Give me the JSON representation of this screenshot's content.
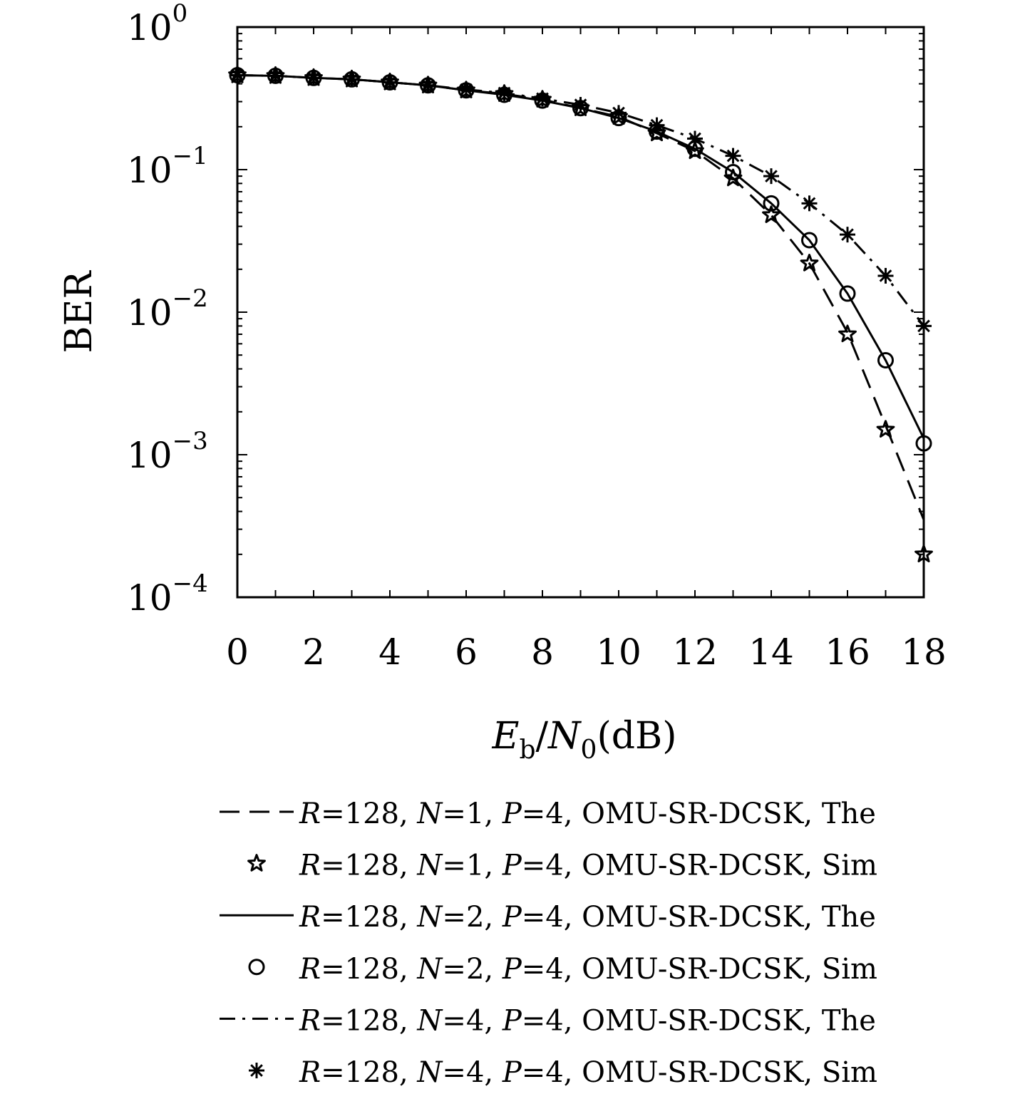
{
  "chart_data": {
    "type": "line",
    "xlabel": "E_b/N_0(dB)",
    "xlabel_parts": {
      "main": "E",
      "sub": "b",
      "slash": "/",
      "main2": "N",
      "sub2": "0",
      "unit": "(dB)"
    },
    "ylabel": "BER",
    "xlim": [
      0,
      18
    ],
    "ylim": [
      0.0001,
      1
    ],
    "yscale": "log",
    "grid": false,
    "legend_position": "below",
    "x_ticks": [
      "0",
      "2",
      "4",
      "6",
      "8",
      "10",
      "12",
      "14",
      "16",
      "18"
    ],
    "y_ticks": [
      {
        "base": "10",
        "exp": "0"
      },
      {
        "base": "10",
        "exp": "−1"
      },
      {
        "base": "10",
        "exp": "−2"
      },
      {
        "base": "10",
        "exp": "−3"
      },
      {
        "base": "10",
        "exp": "−4"
      }
    ],
    "series": [
      {
        "name": "R=128, N=1, P=4, OMU-SR-DCSK, The",
        "kind": "theory",
        "style": "dashed",
        "x": [
          0,
          1,
          2,
          3,
          4,
          5,
          6,
          7,
          8,
          9,
          10,
          11,
          12,
          13,
          14,
          15,
          16,
          17,
          18
        ],
        "y": [
          0.46,
          0.455,
          0.44,
          0.43,
          0.41,
          0.39,
          0.36,
          0.34,
          0.31,
          0.27,
          0.235,
          0.18,
          0.135,
          0.087,
          0.048,
          0.022,
          0.0072,
          0.0016,
          0.00035
        ]
      },
      {
        "name": "R=128, N=1, P=4, OMU-SR-DCSK, Sim",
        "kind": "sim",
        "marker": "star",
        "x": [
          0,
          1,
          2,
          3,
          4,
          5,
          6,
          7,
          8,
          9,
          10,
          11,
          12,
          13,
          14,
          15,
          16,
          17,
          18
        ],
        "y": [
          0.46,
          0.455,
          0.44,
          0.43,
          0.41,
          0.39,
          0.36,
          0.34,
          0.31,
          0.27,
          0.235,
          0.18,
          0.135,
          0.087,
          0.048,
          0.022,
          0.007,
          0.0015,
          0.0002
        ]
      },
      {
        "name": "R=128, N=2, P=4, OMU-SR-DCSK, The",
        "kind": "theory",
        "style": "solid",
        "x": [
          0,
          1,
          2,
          3,
          4,
          5,
          6,
          7,
          8,
          9,
          10,
          11,
          12,
          13,
          14,
          15,
          16,
          17,
          18
        ],
        "y": [
          0.46,
          0.455,
          0.44,
          0.43,
          0.41,
          0.39,
          0.36,
          0.335,
          0.305,
          0.27,
          0.23,
          0.185,
          0.14,
          0.096,
          0.058,
          0.032,
          0.0135,
          0.0046,
          0.0013
        ]
      },
      {
        "name": "R=128, N=2, P=4, OMU-SR-DCSK, Sim",
        "kind": "sim",
        "marker": "circle",
        "x": [
          0,
          1,
          2,
          3,
          4,
          5,
          6,
          7,
          8,
          9,
          10,
          11,
          12,
          13,
          14,
          15,
          16,
          17,
          18
        ],
        "y": [
          0.46,
          0.455,
          0.44,
          0.43,
          0.41,
          0.39,
          0.36,
          0.335,
          0.305,
          0.27,
          0.23,
          0.185,
          0.14,
          0.096,
          0.058,
          0.032,
          0.0135,
          0.0046,
          0.0012
        ]
      },
      {
        "name": "R=128, N=4, P=4, OMU-SR-DCSK, The",
        "kind": "theory",
        "style": "dashdot",
        "x": [
          0,
          1,
          2,
          3,
          4,
          5,
          6,
          7,
          8,
          9,
          10,
          11,
          12,
          13,
          14,
          15,
          16,
          17,
          18
        ],
        "y": [
          0.46,
          0.455,
          0.44,
          0.43,
          0.41,
          0.39,
          0.365,
          0.345,
          0.315,
          0.285,
          0.25,
          0.205,
          0.165,
          0.125,
          0.09,
          0.058,
          0.035,
          0.018,
          0.008
        ]
      },
      {
        "name": "R=128, N=4, P=4, OMU-SR-DCSK, Sim",
        "kind": "sim",
        "marker": "asterisk",
        "x": [
          0,
          1,
          2,
          3,
          4,
          5,
          6,
          7,
          8,
          9,
          10,
          11,
          12,
          13,
          14,
          15,
          16,
          17,
          18
        ],
        "y": [
          0.46,
          0.455,
          0.44,
          0.43,
          0.41,
          0.39,
          0.365,
          0.345,
          0.315,
          0.285,
          0.25,
          0.205,
          0.165,
          0.125,
          0.09,
          0.058,
          0.035,
          0.018,
          0.008
        ]
      }
    ],
    "legend": [
      {
        "parts": [
          [
            "R",
            "it"
          ],
          [
            "=128, ",
            ""
          ],
          [
            "N",
            "it"
          ],
          [
            "=1, ",
            ""
          ],
          [
            "P",
            "it"
          ],
          [
            "=4, OMU-SR-DCSK, The",
            ""
          ]
        ],
        "style": "dashed"
      },
      {
        "parts": [
          [
            "R",
            "it"
          ],
          [
            "=128, ",
            ""
          ],
          [
            "N",
            "it"
          ],
          [
            "=1, ",
            ""
          ],
          [
            "P",
            "it"
          ],
          [
            "=4, OMU-SR-DCSK, Sim",
            ""
          ]
        ],
        "marker": "star"
      },
      {
        "parts": [
          [
            "R",
            "it"
          ],
          [
            "=128, ",
            ""
          ],
          [
            "N",
            "it"
          ],
          [
            "=2, ",
            ""
          ],
          [
            "P",
            "it"
          ],
          [
            "=4, OMU-SR-DCSK, The",
            ""
          ]
        ],
        "style": "solid"
      },
      {
        "parts": [
          [
            "R",
            "it"
          ],
          [
            "=128, ",
            ""
          ],
          [
            "N",
            "it"
          ],
          [
            "=2, ",
            ""
          ],
          [
            "P",
            "it"
          ],
          [
            "=4, OMU-SR-DCSK, Sim",
            ""
          ]
        ],
        "marker": "circle"
      },
      {
        "parts": [
          [
            "R",
            "it"
          ],
          [
            "=128, ",
            ""
          ],
          [
            "N",
            "it"
          ],
          [
            "=4, ",
            ""
          ],
          [
            "P",
            "it"
          ],
          [
            "=4, OMU-SR-DCSK, The",
            ""
          ]
        ],
        "style": "dashdot"
      },
      {
        "parts": [
          [
            "R",
            "it"
          ],
          [
            "=128, ",
            ""
          ],
          [
            "N",
            "it"
          ],
          [
            "=4, ",
            ""
          ],
          [
            "P",
            "it"
          ],
          [
            "=4, OMU-SR-DCSK, Sim",
            ""
          ]
        ],
        "marker": "asterisk"
      }
    ]
  }
}
